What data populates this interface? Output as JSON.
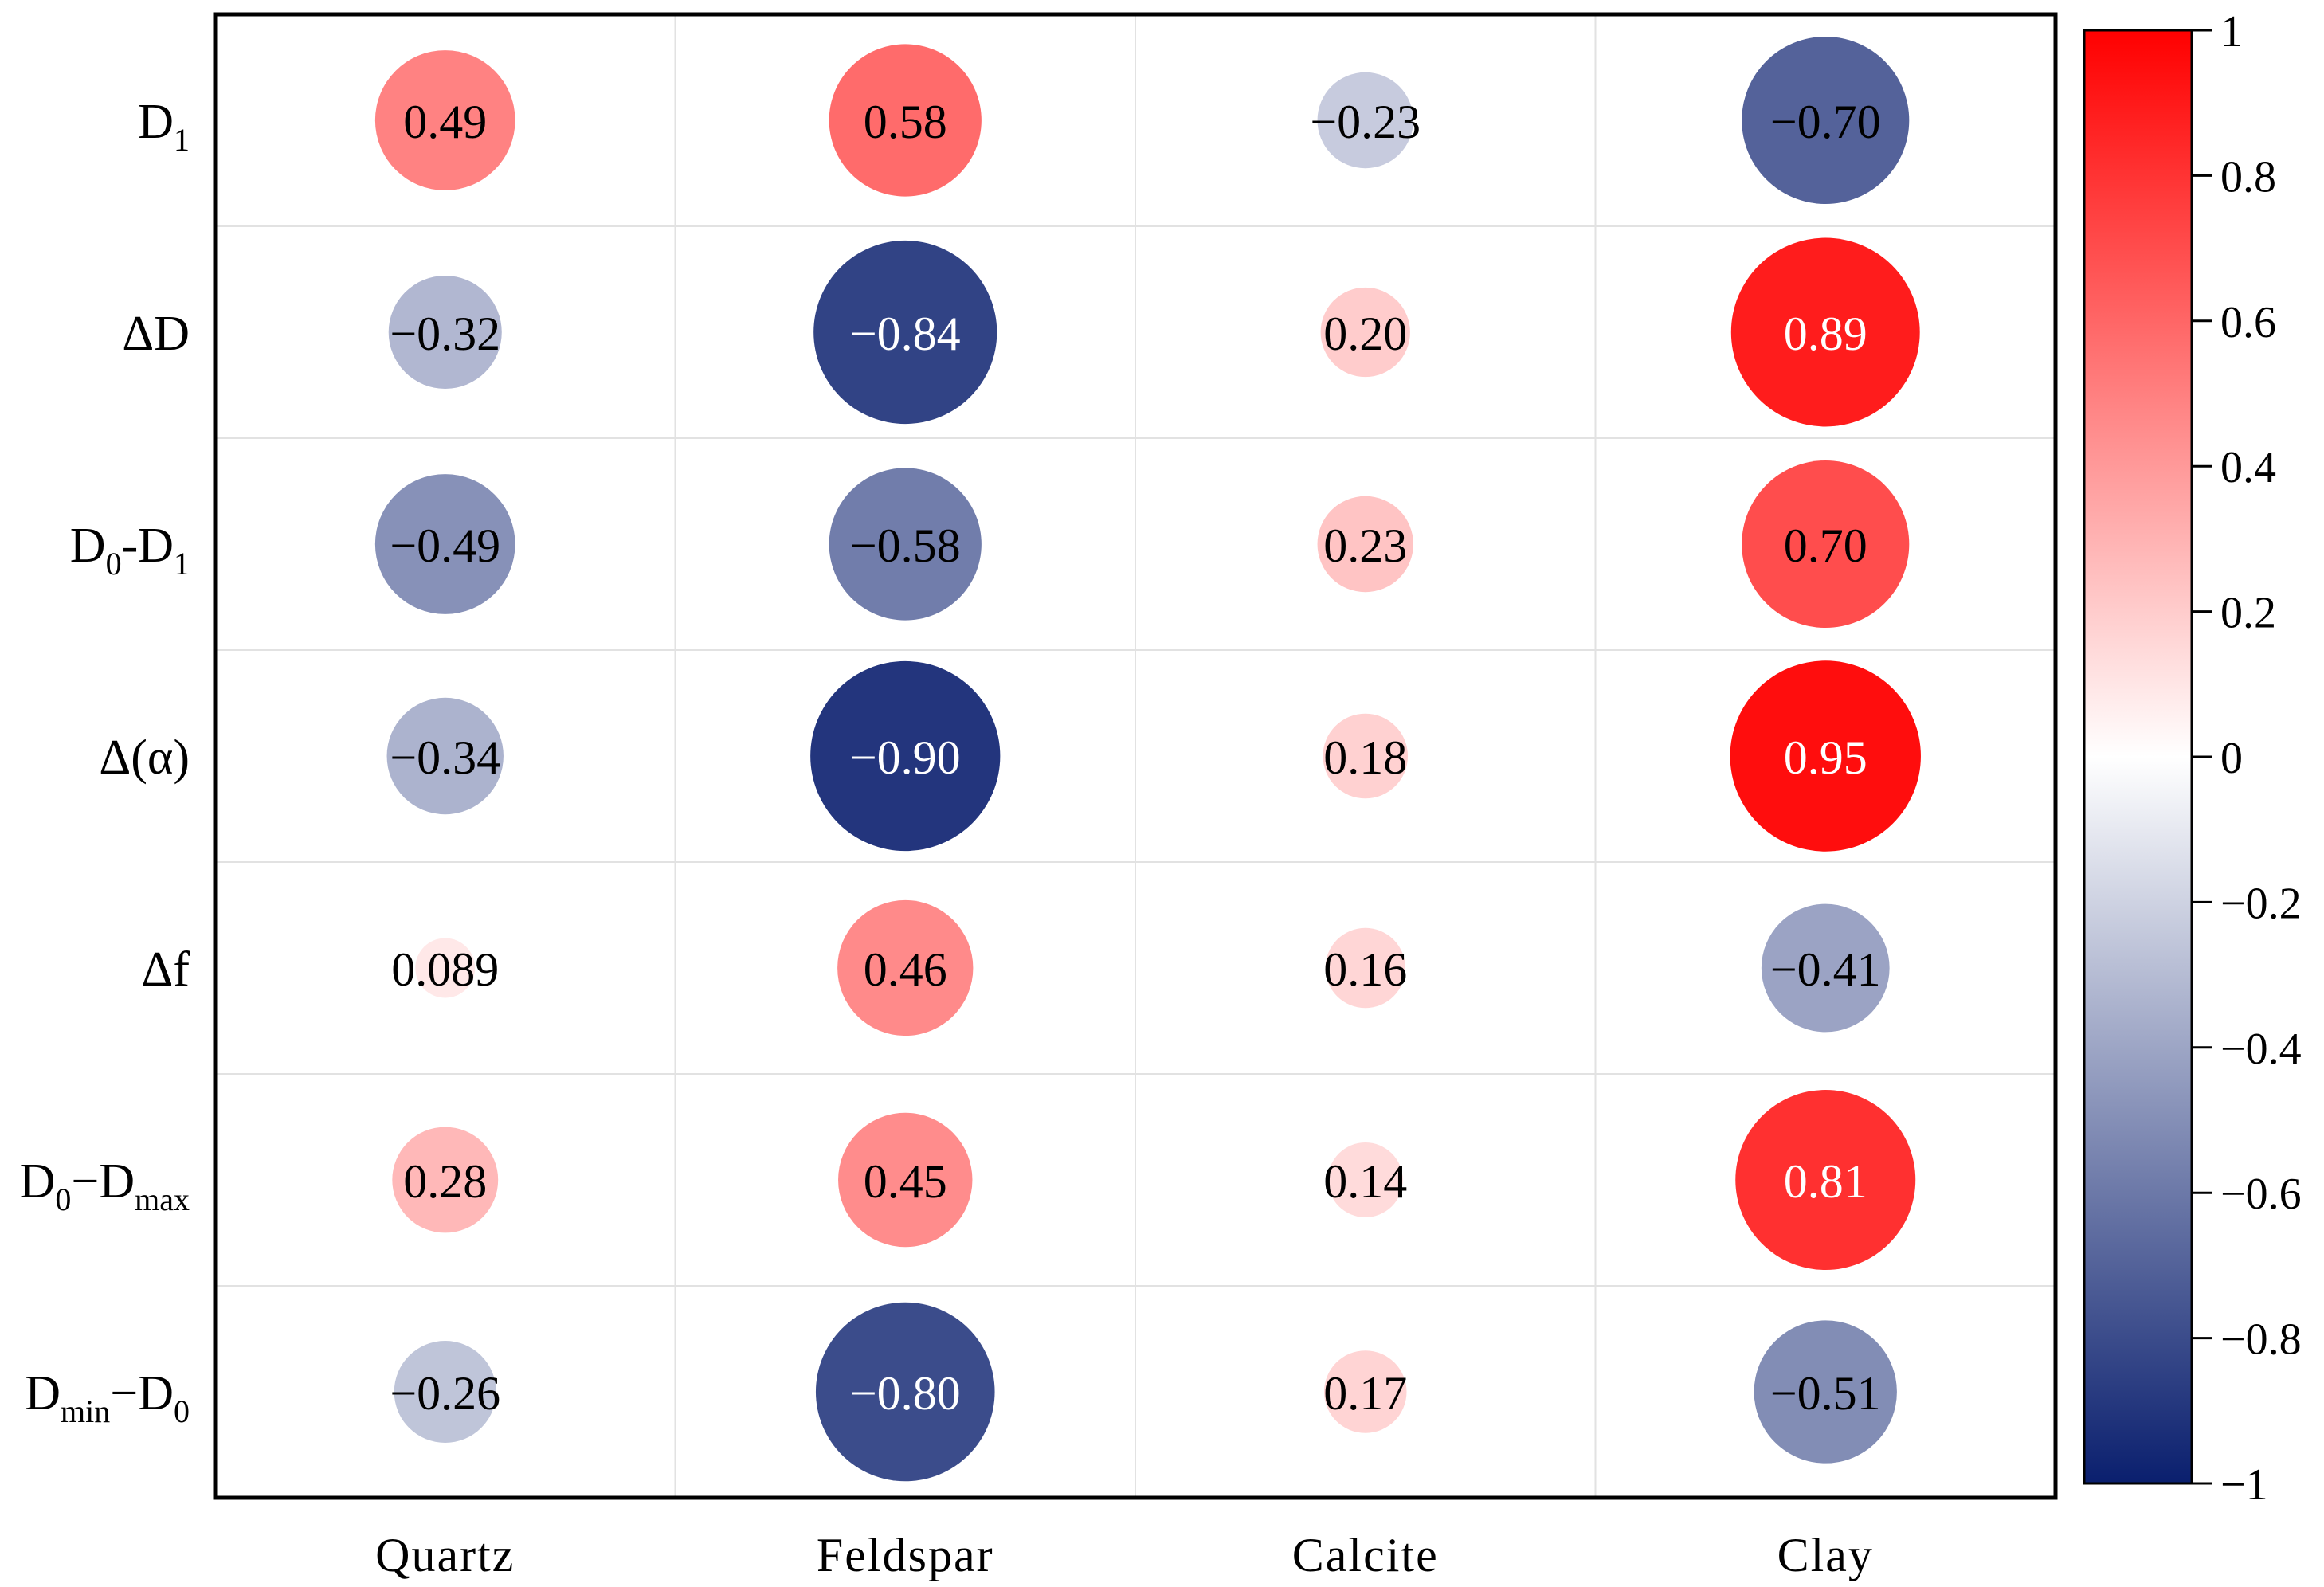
{
  "chart_data": {
    "type": "heatmap",
    "rows": [
      "D1",
      "ΔD",
      "D0-D1",
      "Δ(α)",
      "Δf",
      "D0−Dmax",
      "Dmin−D0"
    ],
    "row_labels": [
      {
        "main": "D",
        "sub": "1",
        "tail": "",
        "sub2": ""
      },
      {
        "main": "ΔD",
        "sub": "",
        "tail": "",
        "sub2": ""
      },
      {
        "main": "D",
        "sub": "0",
        "tail": "-D",
        "sub2": "1"
      },
      {
        "main": "Δ(α)",
        "sub": "",
        "tail": "",
        "sub2": ""
      },
      {
        "main": "Δf",
        "sub": "",
        "tail": "",
        "sub2": ""
      },
      {
        "main": "D",
        "sub": "0",
        "tail": "−D",
        "sub2": "max"
      },
      {
        "main": "D",
        "sub": "min",
        "tail": "−D",
        "sub2": "0"
      }
    ],
    "columns": [
      "Quartz",
      "Feldspar",
      "Calcite",
      "Clay"
    ],
    "values": [
      [
        0.49,
        0.58,
        -0.23,
        -0.7
      ],
      [
        -0.32,
        -0.84,
        0.2,
        0.89
      ],
      [
        -0.49,
        -0.58,
        0.23,
        0.7
      ],
      [
        -0.34,
        -0.9,
        0.18,
        0.95
      ],
      [
        0.089,
        0.46,
        0.16,
        -0.41
      ],
      [
        0.28,
        0.45,
        0.14,
        0.81
      ],
      [
        -0.26,
        -0.8,
        0.17,
        -0.51
      ]
    ],
    "value_labels": [
      [
        "0.49",
        "0.58",
        "−0.23",
        "−0.70"
      ],
      [
        "−0.32",
        "−0.84",
        "0.20",
        "0.89"
      ],
      [
        "−0.49",
        "−0.58",
        "0.23",
        "0.70"
      ],
      [
        "−0.34",
        "−0.90",
        "0.18",
        "0.95"
      ],
      [
        "0.089",
        "0.46",
        "0.16",
        "−0.41"
      ],
      [
        "0.28",
        "0.45",
        "0.14",
        "0.81"
      ],
      [
        "−0.26",
        "−0.80",
        "0.17",
        "−0.51"
      ]
    ],
    "colorbar": {
      "range": [
        -1,
        1
      ],
      "ticks": [
        1,
        0.8,
        0.6,
        0.4,
        0.2,
        0,
        -0.2,
        -0.4,
        -0.6,
        -0.8,
        -1
      ],
      "tick_labels": [
        "1",
        "0.8",
        "0.6",
        "0.4",
        "0.2",
        "0",
        "−0.2",
        "−0.4",
        "−0.6",
        "−0.8",
        "−1"
      ],
      "position": "right"
    },
    "colors": {
      "positive": "#ff0000",
      "neutral": "#ffffff",
      "negative": "#0a1f6e"
    },
    "grid": true
  }
}
